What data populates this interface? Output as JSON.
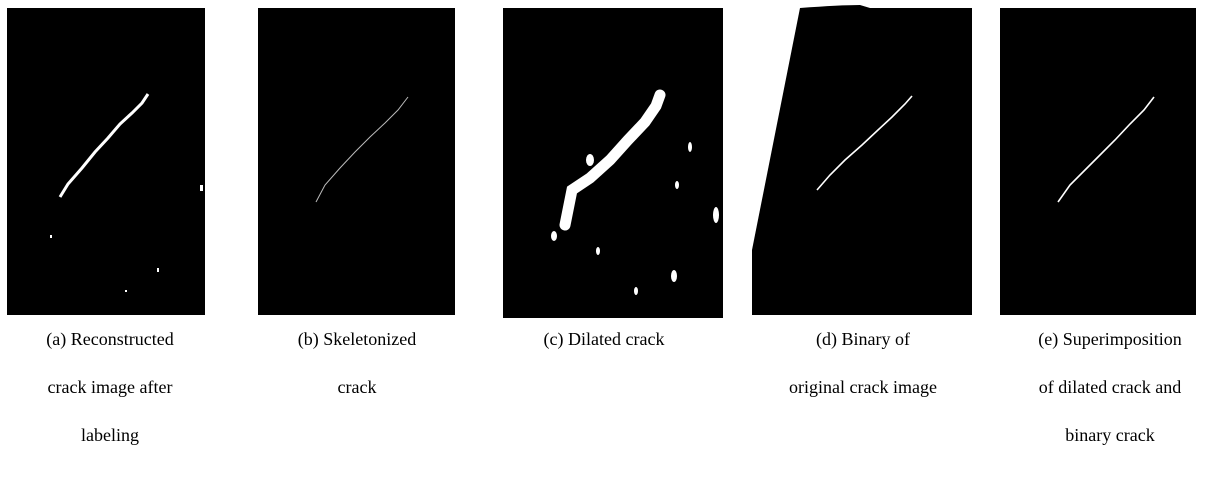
{
  "panels": [
    {
      "caption": [
        "(a) Reconstructed",
        "crack image after",
        "labeling"
      ]
    },
    {
      "caption": [
        "(b) Skeletonized",
        "crack"
      ]
    },
    {
      "caption": [
        "(c) Dilated crack"
      ]
    },
    {
      "caption": [
        "(d) Binary of",
        "original crack image"
      ]
    },
    {
      "caption": [
        "(e) Superimposition",
        "of dilated crack and",
        "binary crack"
      ]
    }
  ]
}
